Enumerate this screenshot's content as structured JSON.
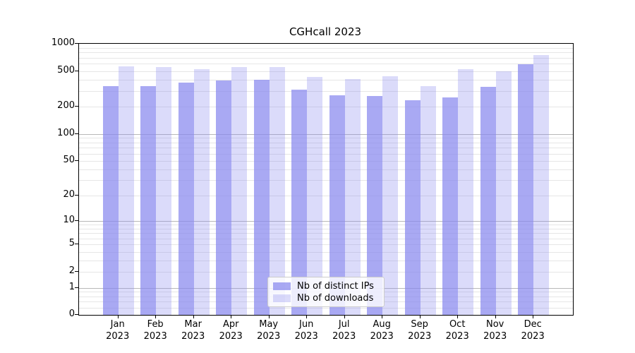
{
  "title": "CGHcall 2023",
  "legend": {
    "ips_label": "Nb of distinct IPs",
    "downloads_label": "Nb of downloads"
  },
  "colors": {
    "bar_base": "#8888ee",
    "bar_ips_rendered": "#aaaaf6",
    "bar_downloads_rendered": "#dcdcf9",
    "grid_major": "#b8b8b8",
    "grid_minor": "#e6e6e6",
    "axis": "#000000",
    "legend_border": "#cccccc"
  },
  "chart_data": {
    "type": "bar",
    "title": "CGHcall 2023",
    "categories": [
      "Jan 2023",
      "Feb 2023",
      "Mar 2023",
      "Apr 2023",
      "May 2023",
      "Jun 2023",
      "Jul 2023",
      "Aug 2023",
      "Sep 2023",
      "Oct 2023",
      "Nov 2023",
      "Dec 2023"
    ],
    "series": [
      {
        "name": "Nb of distinct IPs",
        "values": [
          338,
          338,
          374,
          392,
          397,
          310,
          268,
          263,
          238,
          256,
          336,
          595
        ]
      },
      {
        "name": "Nb of downloads",
        "values": [
          561,
          551,
          520,
          549,
          556,
          433,
          404,
          436,
          337,
          522,
          497,
          750
        ]
      }
    ],
    "xlabel": "",
    "ylabel": "",
    "yticks": [
      0,
      1,
      2,
      5,
      10,
      20,
      50,
      100,
      200,
      500,
      1000
    ],
    "ylim": [
      0,
      1000
    ],
    "yscale": "log10(value+1)",
    "grid": true,
    "grid_major_at": [
      1,
      10,
      100
    ],
    "grid_minor_at": [
      0.2,
      0.4,
      0.6,
      0.8,
      2,
      3,
      4,
      5,
      6,
      7,
      8,
      9,
      20,
      30,
      40,
      50,
      60,
      70,
      80,
      90,
      200,
      300,
      400,
      500,
      600,
      700,
      800,
      900
    ],
    "legend_position": "lower center inside"
  }
}
